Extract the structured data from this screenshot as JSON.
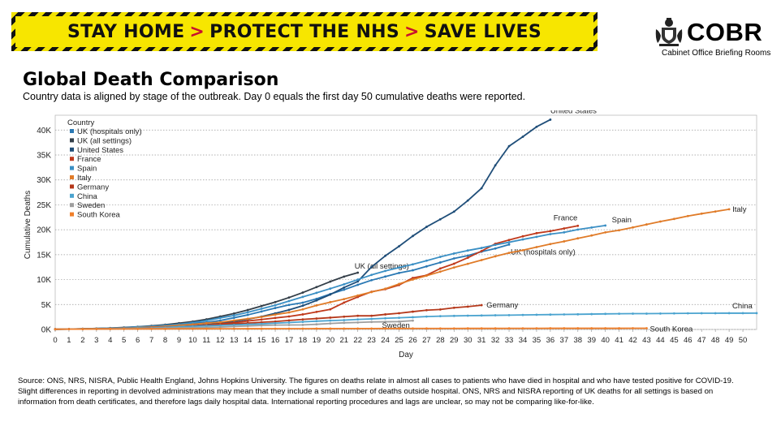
{
  "banner": {
    "part1": "STAY HOME",
    "part2": "PROTECT THE NHS",
    "part3": "SAVE LIVES",
    "separator": ">"
  },
  "logo": {
    "word": "COBR",
    "subtitle": "Cabinet Office Briefing Rooms",
    "icon": "royal-crest-icon"
  },
  "title": "Global Death Comparison",
  "subtitle": "Country data is aligned by stage of the outbreak. Day 0 equals the first day 50 cumulative deaths were reported.",
  "source": "Source: ONS, NRS, NISRA, Public Health England, Johns Hopkins University. The figures on deaths relate in almost all cases to patients who have died in hospital and who have tested positive for COVID-19. Slight differences in reporting in devolved administrations may mean that they include a small number of deaths outside hospital. ONS, NRS and NISRA reporting of UK deaths for all settings is based on information from death certificates, and therefore lags daily hospital data. International reporting procedures and lags are unclear, so may not be comparing like-for-like.",
  "chart_data": {
    "type": "line",
    "xlabel": "Day",
    "ylabel": "Cumulative Deaths",
    "legend_title": "Country",
    "legend_position": "top-left",
    "xlim": [
      0,
      51
    ],
    "ylim": [
      0,
      42000
    ],
    "x_ticks": [
      0,
      1,
      2,
      3,
      4,
      5,
      6,
      7,
      8,
      9,
      10,
      11,
      12,
      13,
      14,
      15,
      16,
      17,
      18,
      19,
      20,
      21,
      22,
      23,
      24,
      25,
      26,
      27,
      28,
      29,
      30,
      31,
      32,
      33,
      34,
      35,
      36,
      37,
      38,
      39,
      40,
      41,
      42,
      43,
      44,
      45,
      46,
      47,
      48,
      49,
      50
    ],
    "y_ticks": [
      0,
      5000,
      10000,
      15000,
      20000,
      25000,
      30000,
      35000,
      40000
    ],
    "y_tick_labels": [
      "0K",
      "5K",
      "10K",
      "15K",
      "20K",
      "25K",
      "30K",
      "35K",
      "40K"
    ],
    "grid": "horizontal dotted",
    "series": [
      {
        "name": "UK (hospitals only)",
        "color": "#2a79b4",
        "end_label": "UK (hospitals only)",
        "values": [
          50,
          70,
          110,
          180,
          240,
          340,
          440,
          590,
          760,
          1020,
          1230,
          1430,
          1790,
          2350,
          2920,
          3600,
          4300,
          4930,
          5370,
          6150,
          7100,
          7970,
          8950,
          9880,
          10610,
          11330,
          11870,
          12650,
          13440,
          14240,
          14820,
          15600,
          16240,
          17040
        ]
      },
      {
        "name": "UK (all settings)",
        "color": "#333e48",
        "end_label": "UK (all settings)",
        "values": [
          50,
          75,
          130,
          200,
          280,
          400,
          540,
          720,
          950,
          1250,
          1580,
          2030,
          2600,
          3200,
          3900,
          4700,
          5500,
          6400,
          7400,
          8500,
          9600,
          10600,
          11400
        ]
      },
      {
        "name": "United States",
        "color": "#1f4e79",
        "end_label": "United States",
        "values": [
          50,
          60,
          80,
          100,
          130,
          180,
          240,
          310,
          420,
          560,
          740,
          950,
          1230,
          1590,
          2040,
          2580,
          3230,
          3920,
          4760,
          5820,
          7000,
          8410,
          9620,
          12550,
          14770,
          16690,
          18750,
          20580,
          22100,
          23640,
          25860,
          28330,
          32920,
          36770,
          38660,
          40660,
          42090
        ]
      },
      {
        "name": "France",
        "color": "#c0391b",
        "end_label": "France",
        "values": [
          50,
          80,
          90,
          120,
          160,
          240,
          300,
          370,
          450,
          560,
          680,
          860,
          1100,
          1330,
          1700,
          2000,
          2310,
          2610,
          3020,
          3520,
          4030,
          5390,
          6520,
          7570,
          8080,
          8920,
          10330,
          10870,
          12230,
          13190,
          14390,
          15730,
          17190,
          17940,
          18690,
          19320,
          19720,
          20260,
          20790
        ]
      },
      {
        "name": "Spain",
        "color": "#3a8fc4",
        "end_label": "Spain",
        "values": [
          50,
          80,
          120,
          200,
          290,
          340,
          530,
          630,
          840,
          1040,
          1380,
          1770,
          2310,
          2810,
          3440,
          4150,
          4860,
          5690,
          6530,
          7340,
          8190,
          9050,
          10000,
          10940,
          11740,
          12420,
          13060,
          13800,
          14560,
          15240,
          15840,
          16350,
          16970,
          17490,
          18060,
          18580,
          19130,
          19480,
          20040,
          20450,
          20850
        ]
      },
      {
        "name": "Italy",
        "color": "#e07b28",
        "end_label": "Italy",
        "values": [
          50,
          80,
          110,
          150,
          200,
          230,
          360,
          460,
          630,
          830,
          1020,
          1270,
          1440,
          1810,
          2160,
          2500,
          2980,
          3410,
          4030,
          4830,
          5480,
          6080,
          6820,
          7500,
          8170,
          9130,
          10020,
          10780,
          11590,
          12430,
          13160,
          13920,
          14680,
          15360,
          15890,
          16520,
          17130,
          17670,
          18280,
          18850,
          19470,
          19900,
          20470,
          21070,
          21650,
          22170,
          22750,
          23230,
          23660,
          24110
        ]
      },
      {
        "name": "Germany",
        "color": "#b5381a",
        "end_label": "Germany",
        "values": [
          50,
          70,
          90,
          120,
          150,
          190,
          260,
          350,
          460,
          540,
          640,
          790,
          920,
          1110,
          1280,
          1440,
          1590,
          1810,
          2020,
          2190,
          2370,
          2570,
          2740,
          2740,
          3020,
          3250,
          3570,
          3870,
          4010,
          4350,
          4580,
          4870
        ]
      },
      {
        "name": "China",
        "color": "#4aa3cf",
        "end_label": "China",
        "values": [
          50,
          60,
          80,
          110,
          140,
          180,
          260,
          300,
          430,
          570,
          630,
          720,
          820,
          910,
          1020,
          1110,
          1260,
          1380,
          1520,
          1660,
          1770,
          1870,
          2010,
          2120,
          2240,
          2340,
          2450,
          2590,
          2660,
          2720,
          2770,
          2800,
          2840,
          2870,
          2910,
          2950,
          2980,
          3010,
          3040,
          3080,
          3120,
          3150,
          3170,
          3180,
          3200,
          3210,
          3230,
          3250,
          3260,
          3270,
          3270,
          3280
        ]
      },
      {
        "name": "Sweden",
        "color": "#9e9e9e",
        "end_label": "Sweden",
        "values": [
          50,
          70,
          80,
          100,
          110,
          150,
          180,
          240,
          290,
          330,
          370,
          400,
          480,
          590,
          690,
          790,
          870,
          890,
          920,
          1030,
          1200,
          1330,
          1400,
          1510,
          1540,
          1580,
          1770
        ]
      },
      {
        "name": "South Korea",
        "color": "#f07f2a",
        "end_label": "South Korea",
        "values": [
          50,
          60,
          70,
          80,
          90,
          100,
          100,
          110,
          110,
          120,
          120,
          130,
          140,
          140,
          150,
          150,
          160,
          160,
          160,
          170,
          170,
          180,
          180,
          180,
          190,
          190,
          200,
          200,
          200,
          200,
          210,
          210,
          210,
          220,
          220,
          220,
          230,
          230,
          230,
          230,
          230,
          230,
          240,
          240
        ]
      }
    ]
  }
}
